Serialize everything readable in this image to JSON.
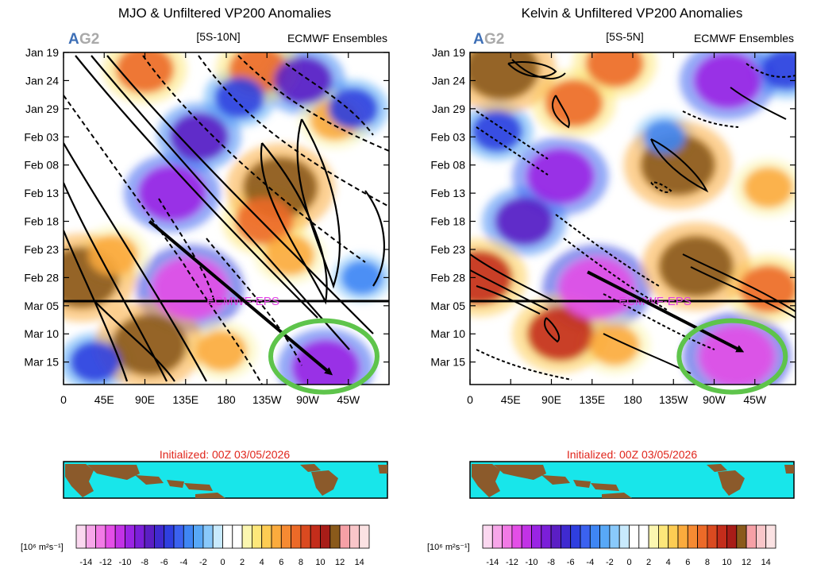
{
  "panels": [
    {
      "title": "MJO & Unfiltered VP200 Anomalies",
      "logo_a": "A",
      "logo_g": "G2",
      "latband": "[5S-10N]",
      "source": "ECMWF Ensembles",
      "forecast_label": "ECMWF-EPS",
      "initialized": "Initialized: 00Z 03/05/2026"
    },
    {
      "title": "Kelvin & Unfiltered VP200 Anomalies",
      "logo_a": "A",
      "logo_g": "G2",
      "latband": "[5S-5N]",
      "source": "ECMWF Ensembles",
      "forecast_label": "ECMWF-EPS",
      "initialized": "Initialized: 00Z 03/05/2026"
    }
  ],
  "chart_data": [
    {
      "type": "heatmap",
      "title": "MJO & Unfiltered VP200 Anomalies",
      "subtitle": "[5S-10N]",
      "source": "ECMWF Ensembles",
      "x_ticks": [
        "0",
        "45E",
        "90E",
        "135E",
        "180",
        "135W",
        "90W",
        "45W"
      ],
      "x_tick_lon": [
        0,
        45,
        90,
        135,
        180,
        225,
        270,
        315
      ],
      "x_range_lon": [
        0,
        360
      ],
      "y_ticks": [
        "Jan 19",
        "Jan 24",
        "Jan 29",
        "Feb 03",
        "Feb 08",
        "Feb 13",
        "Feb 18",
        "Feb 23",
        "Feb 28",
        "Mar 05",
        "Mar 10",
        "Mar 15"
      ],
      "y_tick_day": [
        0,
        5,
        10,
        15,
        20,
        25,
        30,
        35,
        40,
        45,
        50,
        55
      ],
      "y_range_day": [
        0,
        59
      ],
      "forecast_start_day": 45,
      "forecast_label": "ECMWF-EPS",
      "annotation_arrow": {
        "from_lon": 95,
        "from_day": 30,
        "to_lon": 295,
        "to_day": 57
      },
      "highlight_circle": {
        "center_lon": 288,
        "center_day": 54,
        "color": "#5ec44b"
      },
      "anomalies": [
        {
          "lon": 20,
          "day": 40,
          "value": 12
        },
        {
          "lon": 95,
          "day": 52,
          "value": 12
        },
        {
          "lon": 90,
          "day": 3,
          "value": 8
        },
        {
          "lon": 215,
          "day": 3,
          "value": 8
        },
        {
          "lon": 240,
          "day": 24,
          "value": 12
        },
        {
          "lon": 222,
          "day": 30,
          "value": 8
        },
        {
          "lon": 250,
          "day": 36,
          "value": 6
        },
        {
          "lon": 300,
          "day": 12,
          "value": 6
        },
        {
          "lon": 175,
          "day": 53,
          "value": 6
        },
        {
          "lon": 55,
          "day": 36,
          "value": 6
        },
        {
          "lon": 140,
          "day": 42,
          "value": -12
        },
        {
          "lon": 120,
          "day": 25,
          "value": -10
        },
        {
          "lon": 150,
          "day": 15,
          "value": -8
        },
        {
          "lon": 290,
          "day": 56,
          "value": -10
        },
        {
          "lon": 265,
          "day": 5,
          "value": -8
        },
        {
          "lon": 320,
          "day": 10,
          "value": -6
        },
        {
          "lon": 35,
          "day": 55,
          "value": -6
        },
        {
          "lon": 195,
          "day": 8,
          "value": -6
        },
        {
          "lon": 330,
          "day": 40,
          "value": -4
        }
      ]
    },
    {
      "type": "heatmap",
      "title": "Kelvin & Unfiltered VP200 Anomalies",
      "subtitle": "[5S-5N]",
      "source": "ECMWF Ensembles",
      "x_ticks": [
        "0",
        "45E",
        "90E",
        "135E",
        "180",
        "135W",
        "90W",
        "45W"
      ],
      "x_tick_lon": [
        0,
        45,
        90,
        135,
        180,
        225,
        270,
        315
      ],
      "x_range_lon": [
        0,
        360
      ],
      "y_ticks": [
        "Jan 19",
        "Jan 24",
        "Jan 29",
        "Feb 03",
        "Feb 08",
        "Feb 13",
        "Feb 18",
        "Feb 23",
        "Feb 28",
        "Mar 05",
        "Mar 10",
        "Mar 15"
      ],
      "y_tick_day": [
        0,
        5,
        10,
        15,
        20,
        25,
        30,
        35,
        40,
        45,
        50,
        55
      ],
      "y_range_day": [
        0,
        59
      ],
      "forecast_start_day": 45,
      "forecast_label": "ECMWF-EPS",
      "annotation_arrow": {
        "from_lon": 130,
        "from_day": 39,
        "to_lon": 300,
        "to_day": 53
      },
      "highlight_circle": {
        "center_lon": 290,
        "center_day": 54,
        "color": "#5ec44b"
      },
      "anomalies": [
        {
          "lon": 35,
          "day": 3,
          "value": 12
        },
        {
          "lon": 115,
          "day": 9,
          "value": 8
        },
        {
          "lon": 230,
          "day": 20,
          "value": 12
        },
        {
          "lon": 10,
          "day": 40,
          "value": 10
        },
        {
          "lon": 100,
          "day": 50,
          "value": 10
        },
        {
          "lon": 250,
          "day": 38,
          "value": 12
        },
        {
          "lon": 330,
          "day": 42,
          "value": 8
        },
        {
          "lon": 160,
          "day": 2,
          "value": 8
        },
        {
          "lon": 330,
          "day": 24,
          "value": 6
        },
        {
          "lon": 160,
          "day": 52,
          "value": 6
        },
        {
          "lon": 140,
          "day": 42,
          "value": -12
        },
        {
          "lon": 100,
          "day": 22,
          "value": -10
        },
        {
          "lon": 60,
          "day": 30,
          "value": -8
        },
        {
          "lon": 295,
          "day": 54,
          "value": -12
        },
        {
          "lon": 285,
          "day": 5,
          "value": -10
        },
        {
          "lon": 30,
          "day": 14,
          "value": -6
        },
        {
          "lon": 215,
          "day": 15,
          "value": -4
        },
        {
          "lon": 350,
          "day": 3,
          "value": -6
        }
      ]
    }
  ],
  "colorbar": {
    "unit_label": "[10⁶ m²s⁻¹]",
    "labels": [
      "-14",
      "-12",
      "-10",
      "-8",
      "-6",
      "-4",
      "-2",
      "0",
      "2",
      "4",
      "6",
      "8",
      "10",
      "12",
      "14"
    ],
    "colors": [
      "#fbd8f0",
      "#f7a6e9",
      "#f27ae6",
      "#e44ee7",
      "#c232e6",
      "#9a24e4",
      "#7b1fd9",
      "#5b1ec4",
      "#3f2ad0",
      "#2f3fe0",
      "#3b62f0",
      "#3f86f4",
      "#58a8f7",
      "#89c9fb",
      "#c8eafd",
      "#ffffff",
      "#ffffff",
      "#fbf6b0",
      "#fde77a",
      "#fdcc53",
      "#fbab3d",
      "#f68a32",
      "#ec6a28",
      "#da4a20",
      "#c32d1b",
      "#a81d18",
      "#8a5a1b",
      "#f6a0a6",
      "#f9c6c9",
      "#fbe2e3"
    ]
  }
}
